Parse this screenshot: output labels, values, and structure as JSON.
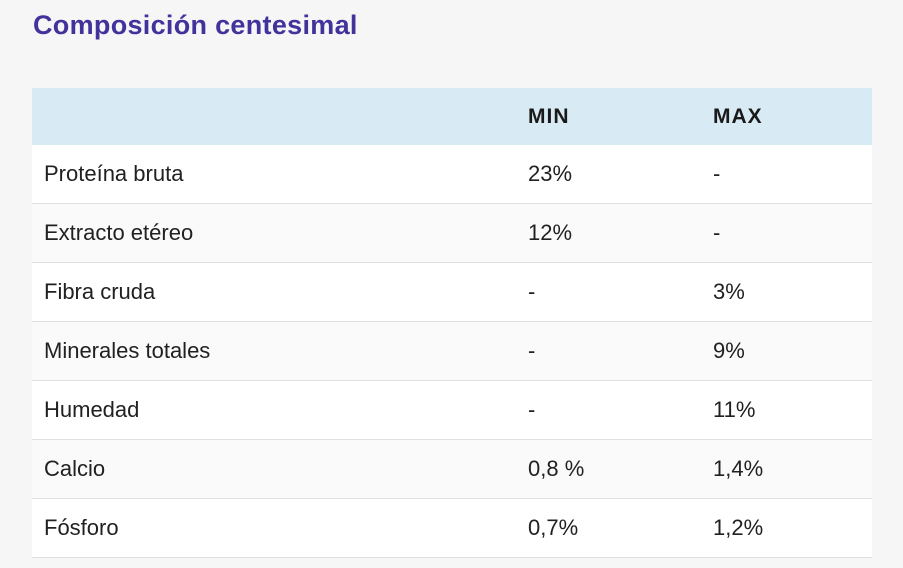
{
  "title": "Composición centesimal",
  "colors": {
    "page_background": "#f6f6f6",
    "title": "#41339b",
    "header_background": "#d8ebf4",
    "header_text": "#1a1a1a",
    "body_text": "#212121",
    "row_alt_background": "#fafafa",
    "row_border": "#e0e0e0"
  },
  "table": {
    "header": {
      "label": "",
      "min": "MIN",
      "max": "MAX"
    },
    "rows": [
      {
        "label": "Proteína bruta",
        "min": "23%",
        "max": "-"
      },
      {
        "label": "Extracto etéreo",
        "min": "12%",
        "max": "-"
      },
      {
        "label": "Fibra cruda",
        "min": "-",
        "max": "3%"
      },
      {
        "label": "Minerales totales",
        "min": "-",
        "max": "9%"
      },
      {
        "label": "Humedad",
        "min": "-",
        "max": "11%"
      },
      {
        "label": "Calcio",
        "min": "0,8 %",
        "max": "1,4%"
      },
      {
        "label": "Fósforo",
        "min": "0,7%",
        "max": "1,2%"
      }
    ]
  }
}
